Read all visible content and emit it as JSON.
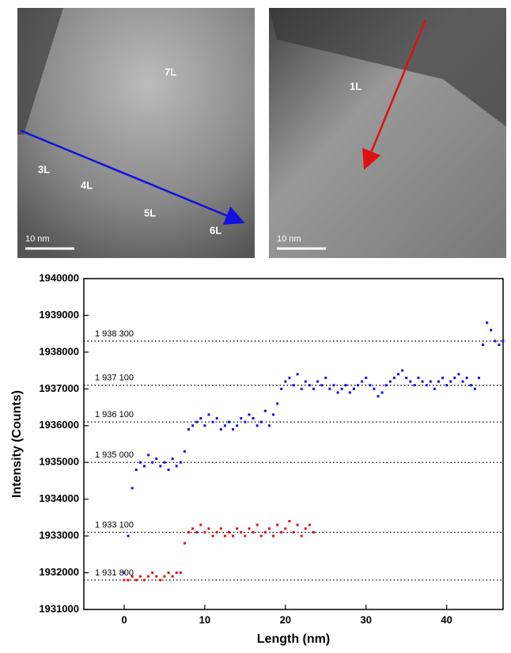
{
  "images": [
    {
      "labels": [
        "7L",
        "3L",
        "4L",
        "5L",
        "6L"
      ],
      "scale_bar": "10 nm"
    },
    {
      "labels": [
        "1L"
      ],
      "scale_bar": "10 nm"
    }
  ],
  "chart_data": {
    "type": "scatter",
    "x_label": "Length (nm)",
    "y_label": "Intensity (Counts)",
    "xlim": [
      -5,
      47
    ],
    "xticks": [
      0,
      10,
      20,
      30,
      40
    ],
    "ylim": [
      1931000,
      1940000
    ],
    "yticks": [
      1931000,
      1932000,
      1933000,
      1934000,
      1935000,
      1936000,
      1937000,
      1938000,
      1939000,
      1940000
    ],
    "reference_lines": [
      {
        "value": 1938300,
        "label": "1 938 300"
      },
      {
        "value": 1937100,
        "label": "1 937 100"
      },
      {
        "value": 1936100,
        "label": "1 936 100"
      },
      {
        "value": 1935000,
        "label": "1 935 000"
      },
      {
        "value": 1933100,
        "label": "1 933 100"
      },
      {
        "value": 1931800,
        "label": "1 931 800"
      }
    ],
    "series": [
      {
        "color": "#1010e0",
        "x": [
          0,
          0.5,
          1,
          1.5,
          2,
          2.5,
          3,
          3.5,
          4,
          4.5,
          5,
          5.5,
          6,
          6.5,
          7,
          7.5,
          8,
          8.5,
          9,
          9.5,
          10,
          10.5,
          11,
          11.5,
          12,
          12.5,
          13,
          13.5,
          14,
          14.5,
          15,
          15.5,
          16,
          16.5,
          17,
          17.5,
          18,
          18.5,
          19,
          19.5,
          20,
          20.5,
          21,
          21.5,
          22,
          22.5,
          23,
          23.5,
          24,
          24.5,
          25,
          25.5,
          26,
          26.5,
          27,
          27.5,
          28,
          28.5,
          29,
          29.5,
          30,
          30.5,
          31,
          31.5,
          32,
          32.5,
          33,
          33.5,
          34,
          34.5,
          35,
          35.5,
          36,
          36.5,
          37,
          37.5,
          38,
          38.5,
          39,
          39.5,
          40,
          40.5,
          41,
          41.5,
          42,
          42.5,
          43,
          43.5,
          44,
          44.5,
          45,
          45.5,
          46,
          46.5,
          47
        ],
        "values": [
          1932000,
          1933000,
          1934300,
          1934800,
          1935000,
          1934900,
          1935200,
          1935000,
          1935100,
          1934900,
          1935000,
          1934800,
          1935100,
          1934900,
          1935000,
          1935300,
          1935900,
          1936000,
          1936100,
          1936200,
          1936000,
          1936300,
          1936100,
          1936200,
          1935900,
          1936000,
          1936100,
          1935900,
          1936000,
          1936200,
          1936100,
          1936300,
          1936200,
          1936000,
          1936100,
          1936400,
          1936000,
          1936300,
          1936600,
          1937000,
          1937200,
          1937300,
          1937100,
          1937400,
          1937000,
          1937200,
          1937100,
          1937000,
          1937200,
          1937100,
          1937300,
          1937000,
          1937100,
          1936900,
          1937000,
          1937100,
          1936900,
          1937000,
          1937100,
          1937200,
          1937300,
          1937100,
          1937000,
          1936800,
          1936900,
          1937100,
          1937200,
          1937300,
          1937400,
          1937500,
          1937300,
          1937200,
          1937100,
          1937300,
          1937200,
          1937100,
          1937200,
          1937000,
          1937200,
          1937300,
          1937100,
          1937200,
          1937300,
          1937400,
          1937200,
          1937300,
          1937100,
          1937000,
          1937300,
          1938200,
          1938800,
          1938600,
          1938300,
          1938200,
          1938300
        ]
      },
      {
        "color": "#e01010",
        "x": [
          0,
          0.5,
          1,
          1.5,
          2,
          2.5,
          3,
          3.5,
          4,
          4.5,
          5,
          5.5,
          6,
          6.5,
          7,
          7.5,
          8,
          8.5,
          9,
          9.5,
          10,
          10.5,
          11,
          11.5,
          12,
          12.5,
          13,
          13.5,
          14,
          14.5,
          15,
          15.5,
          16,
          16.5,
          17,
          17.5,
          18,
          18.5,
          19,
          19.5,
          20,
          20.5,
          21,
          21.5,
          22,
          22.5,
          23,
          23.5
        ],
        "values": [
          1931800,
          1931800,
          1931900,
          1931800,
          1931900,
          1931800,
          1931900,
          1932000,
          1931900,
          1931800,
          1931900,
          1932000,
          1931900,
          1932000,
          1932000,
          1932800,
          1933100,
          1933200,
          1933100,
          1933300,
          1933100,
          1933200,
          1933000,
          1933100,
          1933200,
          1933000,
          1933100,
          1933000,
          1933200,
          1933100,
          1933000,
          1933200,
          1933100,
          1933300,
          1933000,
          1933100,
          1933200,
          1933000,
          1933300,
          1933100,
          1933200,
          1933400,
          1933100,
          1933300,
          1933000,
          1933200,
          1933300,
          1933100
        ]
      }
    ]
  }
}
